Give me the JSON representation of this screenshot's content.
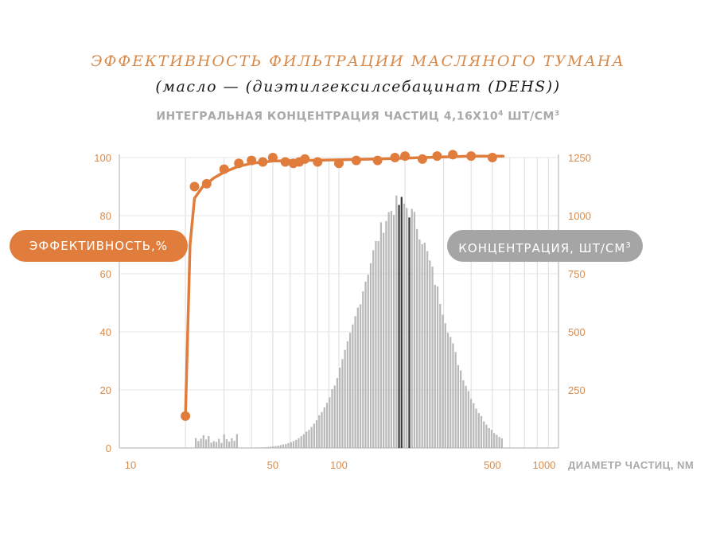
{
  "header": {
    "title": "ЭФФЕКТИВНОСТЬ ФИЛЬТРАЦИИ МАСЛЯНОГО ТУМАНА",
    "subtitle": "(масло — (диэтилгексилсебацинат (DEHS))",
    "concentration_text": "ИНТЕГРАЛЬНАЯ КОНЦЕНТРАЦИЯ ЧАСТИЦ 4,16Х10",
    "concentration_exp": "4",
    "concentration_unit": " ШТ/СМ",
    "concentration_unit_exp": "3"
  },
  "labels": {
    "left_axis": "ЭФФЕКТИВНОСТЬ,%",
    "right_axis": "КОНЦЕНТРАЦИЯ, ШТ/СМ",
    "right_axis_exp": "3",
    "x_axis": "ДИАМЕТР ЧАСТИЦ, NM"
  },
  "colors": {
    "orange": "#e07d3c",
    "axis_text_orange": "#d98a4a",
    "bar_gray": "#b9b9b9",
    "bar_dark": "#3a3a3a",
    "grid": "#dcdcdc",
    "axis": "#c8c8c8"
  },
  "chart_data": {
    "type": "bar+line",
    "x_scale": "log",
    "xlim": [
      10,
      1000
    ],
    "x_ticks": [
      10,
      50,
      100,
      500,
      1000
    ],
    "y_left": {
      "lim": [
        0,
        100
      ],
      "ticks": [
        0,
        20,
        40,
        60,
        80,
        100
      ]
    },
    "y_right": {
      "lim": [
        0,
        1250
      ],
      "ticks": [
        250,
        500,
        750,
        1000,
        1250
      ]
    },
    "efficiency_points": {
      "x": [
        20,
        22,
        25,
        30,
        35,
        40,
        45,
        50,
        57,
        62,
        66,
        70,
        80,
        100,
        120,
        150,
        180,
        200,
        240,
        280,
        330,
        400,
        500
      ],
      "y": [
        11,
        90,
        91,
        96,
        98,
        99,
        98.5,
        100,
        98.5,
        98,
        98.5,
        99.5,
        98.5,
        98,
        99,
        99,
        100,
        100.5,
        99.5,
        100.5,
        101,
        100.5,
        100
      ]
    },
    "efficiency_curve": {
      "x": [
        20,
        21,
        22,
        24,
        27,
        30,
        35,
        40,
        50,
        70,
        100,
        150,
        200,
        300,
        400,
        560
      ],
      "y": [
        11,
        70,
        86,
        90,
        93,
        95,
        97,
        98,
        98.8,
        99,
        99.2,
        99.5,
        99.8,
        100.2,
        100.5,
        100.5
      ]
    },
    "concentration_bars": {
      "x_range": [
        22,
        560
      ],
      "peak_x": 190,
      "peak_value": 1050,
      "peak_value_lower_limit": 20,
      "small_noise_region_max_x": 35
    }
  }
}
